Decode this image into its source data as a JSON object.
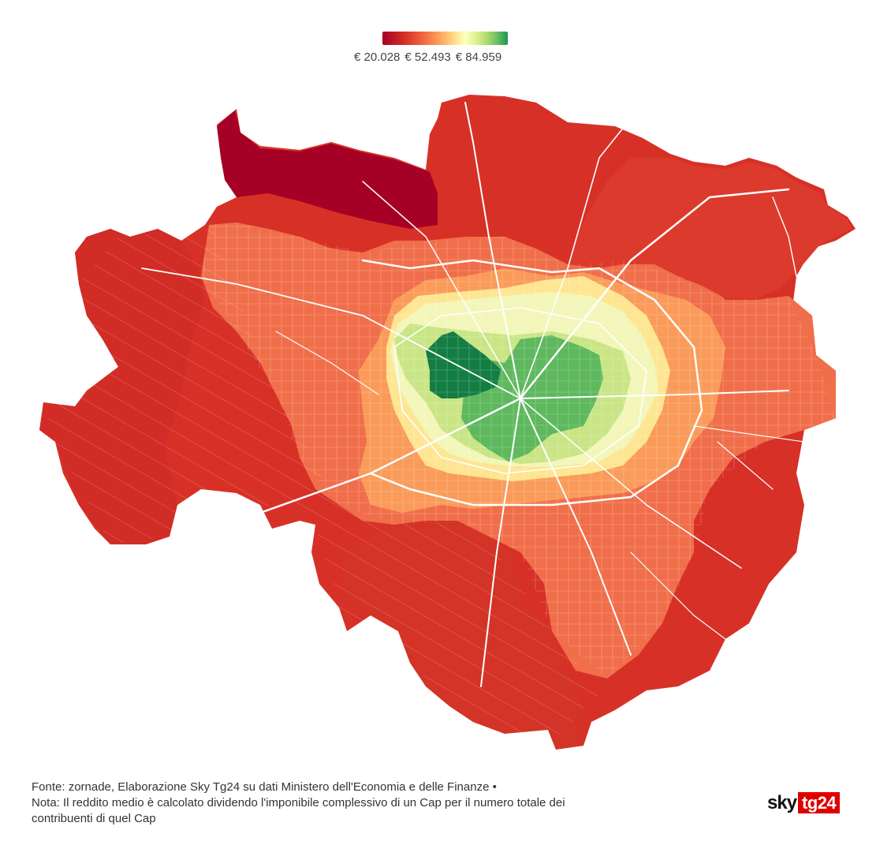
{
  "legend": {
    "min_label": "€ 20.028",
    "mid_label": "€ 52.493",
    "max_label": "€ 84.959",
    "min_value": 20028,
    "mid_value": 52493,
    "max_value": 84959,
    "colors": [
      "#a50026",
      "#d73027",
      "#f46d43",
      "#fdae61",
      "#fee08b",
      "#ffffbf",
      "#d9ef8b",
      "#a6d96a",
      "#66bd63",
      "#1a9850"
    ]
  },
  "map": {
    "theme": "choropleth-income-by-cap",
    "zone_colors": {
      "outer": "#d73027",
      "north_dark": "#a50026",
      "ring": "#f06e4a",
      "light_orange": "#fdb163",
      "yellow": "#feeb9a",
      "pale": "#f6f9c0",
      "light_green": "#cde98a",
      "green": "#5fb85e",
      "dark_green": "#137d43"
    }
  },
  "footer": {
    "line1": "Fonte: zornade, Elaborazione Sky Tg24 su dati Ministero dell'Economia e delle Finanze •",
    "line2": "Nota: Il reddito medio è calcolato dividendo l'imponibile complessivo di un Cap per il numero totale dei",
    "line3": "contribuenti di quel Cap"
  },
  "logo": {
    "sky": "sky",
    "tg": "tg24",
    "red": "#e00000"
  }
}
